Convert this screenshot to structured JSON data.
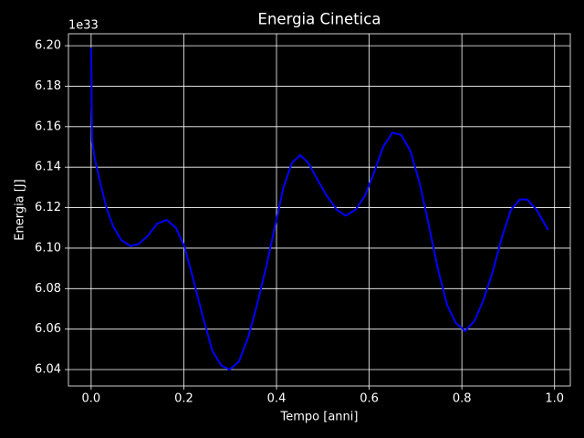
{
  "chart_data": {
    "type": "line",
    "title": "Energia Cinetica",
    "x_label": "Tempo [anni]",
    "y_label": "Energia [J]",
    "y_offset_label": "1e33",
    "x": [
      0,
      0.002,
      0.008,
      0.02,
      0.033,
      0.047,
      0.065,
      0.085,
      0.102,
      0.122,
      0.142,
      0.163,
      0.183,
      0.201,
      0.22,
      0.24,
      0.262,
      0.281,
      0.299,
      0.319,
      0.339,
      0.358,
      0.378,
      0.398,
      0.415,
      0.433,
      0.451,
      0.469,
      0.488,
      0.508,
      0.53,
      0.549,
      0.571,
      0.591,
      0.61,
      0.63,
      0.65,
      0.669,
      0.689,
      0.709,
      0.728,
      0.748,
      0.768,
      0.787,
      0.807,
      0.827,
      0.846,
      0.866,
      0.886,
      0.906,
      0.925,
      0.941,
      0.961,
      0.986
    ],
    "series": [
      {
        "name": "Energia",
        "color": "#0000ff",
        "values": [
          6.199,
          6.153,
          6.144,
          6.132,
          6.12,
          6.111,
          6.104,
          6.101,
          6.102,
          6.106,
          6.112,
          6.114,
          6.11,
          6.101,
          6.085,
          6.067,
          6.049,
          6.042,
          6.04,
          6.044,
          6.056,
          6.072,
          6.091,
          6.112,
          6.13,
          6.142,
          6.146,
          6.142,
          6.134,
          6.126,
          6.119,
          6.116,
          6.119,
          6.126,
          6.137,
          6.15,
          6.157,
          6.156,
          6.148,
          6.132,
          6.112,
          6.09,
          6.072,
          6.063,
          6.059,
          6.064,
          6.074,
          6.088,
          6.105,
          6.119,
          6.124,
          6.124,
          6.119,
          6.109
        ]
      }
    ],
    "xlim": [
      -0.049,
      1.034
    ],
    "xticks": [
      {
        "value": 0,
        "label": "0.0"
      },
      0.2,
      0.4,
      0.6,
      0.8,
      {
        "value": 1,
        "label": "1.0"
      }
    ],
    "ylim": [
      6.0319,
      6.2059
    ],
    "yticks": [
      6.04,
      6.06,
      6.08,
      {
        "value": 6.1,
        "label": "6.10"
      },
      6.12,
      6.14,
      6.16,
      6.18,
      {
        "value": 6.2,
        "label": "6.20"
      }
    ],
    "grid": true
  }
}
